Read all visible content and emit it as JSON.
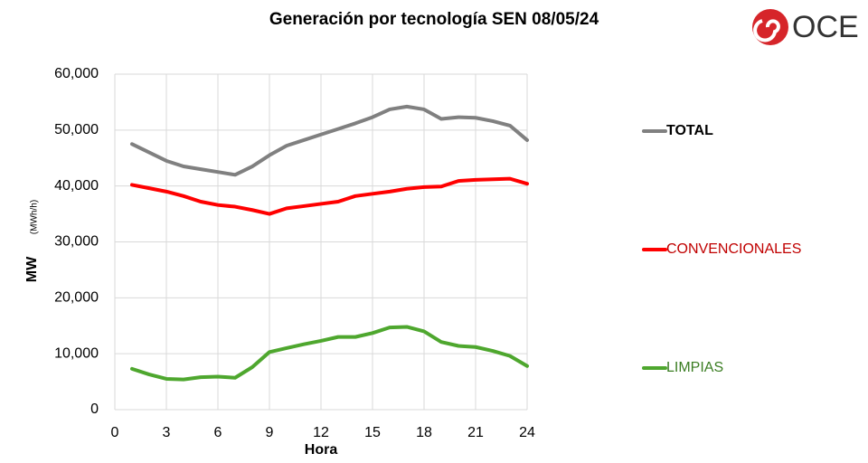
{
  "chart_data": {
    "type": "line",
    "title": "Generación por tecnología SEN 08/05/24",
    "y_label": "MW",
    "y_unit": "(MWh/h)",
    "x_label": "Hora",
    "x": [
      1,
      2,
      3,
      4,
      5,
      6,
      7,
      8,
      9,
      10,
      11,
      12,
      13,
      14,
      15,
      16,
      17,
      18,
      19,
      20,
      21,
      22,
      23,
      24
    ],
    "xlim": [
      0,
      24
    ],
    "xticks": [
      0,
      3,
      6,
      9,
      12,
      15,
      18,
      21,
      24
    ],
    "ylim": [
      0,
      60000
    ],
    "yticks": [
      0,
      {
        "value": 10000,
        "label": "10,000"
      },
      {
        "value": 20000,
        "label": "20,000"
      },
      {
        "value": 30000,
        "label": "30,000"
      },
      {
        "value": 40000,
        "label": "40,000"
      },
      {
        "value": 50000,
        "label": "50,000"
      },
      {
        "value": 60000,
        "label": "60,000"
      }
    ],
    "grid": true,
    "legend": "right",
    "series": [
      {
        "name": "TOTAL",
        "color": "#808080",
        "label_color": "#000000",
        "values": [
          47500,
          46000,
          44500,
          43500,
          43000,
          42500,
          42000,
          43500,
          45500,
          47200,
          48200,
          49200,
          50200,
          51200,
          52300,
          53700,
          54200,
          53700,
          52000,
          52300,
          52200,
          51600,
          50800,
          48200
        ]
      },
      {
        "name": "CONVENCIONALES",
        "color": "#ff0000",
        "label_color": "#c00000",
        "values": [
          40200,
          39600,
          39000,
          38200,
          37200,
          36600,
          36300,
          35700,
          35000,
          36000,
          36400,
          36800,
          37200,
          38200,
          38600,
          39000,
          39500,
          39800,
          39900,
          40900,
          41100,
          41200,
          41300,
          40400
        ]
      },
      {
        "name": "LIMPIAS",
        "color": "#4ea72e",
        "label_color": "#3a7d22",
        "values": [
          7300,
          6300,
          5500,
          5400,
          5800,
          5900,
          5700,
          7600,
          10300,
          11000,
          11700,
          12300,
          13000,
          13000,
          13700,
          14700,
          14800,
          14000,
          12100,
          11400,
          11200,
          10500,
          9600,
          7800
        ]
      }
    ]
  },
  "logo": "OCE"
}
